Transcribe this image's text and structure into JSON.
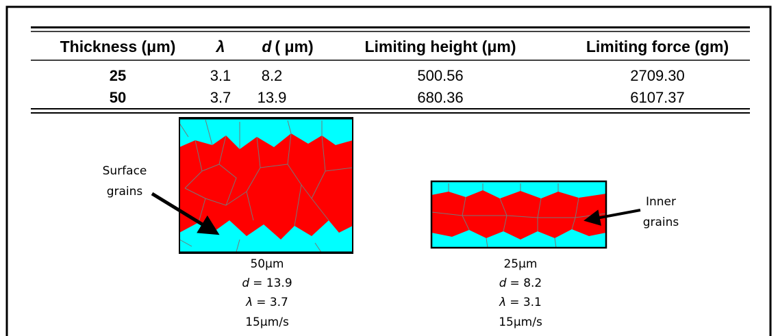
{
  "table": {
    "header": [
      "Thickness (μm)",
      "λ",
      {
        "symbol": "d",
        "unit": "( μm)"
      },
      "Limiting height (μm)",
      "Limiting force (gm)"
    ],
    "rows": [
      [
        "25",
        "3.1",
        "8.2",
        "500.56",
        "2709.30"
      ],
      [
        "50",
        "3.7",
        "13.9",
        "680.36",
        "6107.37"
      ]
    ]
  },
  "figures": [
    {
      "annotation": [
        "Surface",
        "grains"
      ],
      "thickness": "50μm",
      "d": {
        "symbol": "d",
        "value": "= 13.9"
      },
      "lambda": {
        "symbol": "λ",
        "value": "= 3.7"
      },
      "speed": "15μm/s"
    },
    {
      "annotation": [
        "Inner",
        "grains"
      ],
      "thickness": "25μm",
      "d": {
        "symbol": "d",
        "value": "= 8.2"
      },
      "lambda": {
        "symbol": "λ",
        "value": "= 3.1"
      },
      "speed": "15μm/s"
    }
  ]
}
